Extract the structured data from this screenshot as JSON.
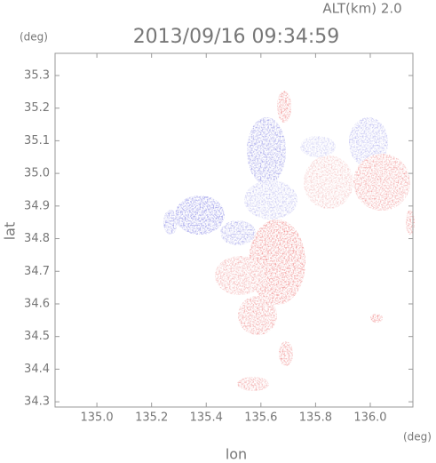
{
  "chart_data": {
    "type": "map",
    "title": "2013/09/16 09:34:59",
    "subtitle": "ALT(km)  2.0",
    "x_label": "lon",
    "x_unit": "(deg)",
    "y_label": "lat",
    "y_unit": "(deg)",
    "xlim": [
      134.847,
      136.156
    ],
    "ylim": [
      34.284,
      35.368
    ],
    "xticks": [
      {
        "value": 135.0,
        "label": "135.0"
      },
      135.2,
      135.4,
      135.6,
      135.8,
      {
        "value": 136.0,
        "label": "136.0"
      }
    ],
    "yticks": [
      35.3,
      35.2,
      35.1,
      {
        "value": 35.0,
        "label": "35.0"
      },
      34.9,
      34.8,
      34.7,
      34.6,
      34.5,
      34.4,
      34.3
    ]
  }
}
